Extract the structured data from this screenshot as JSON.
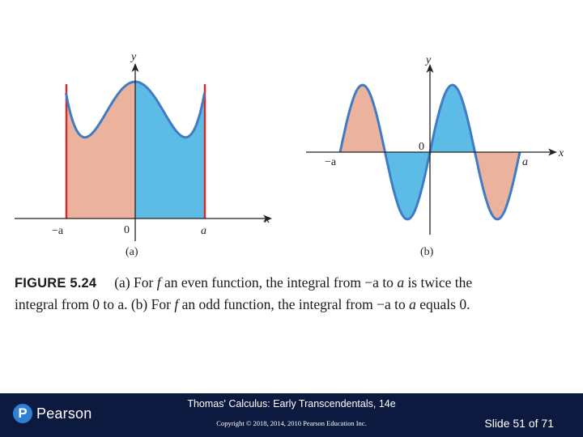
{
  "figure": {
    "panel_a": {
      "x_axis_label": "x",
      "y_axis_label": "y",
      "tick_neg": "−a",
      "tick_zero": "0",
      "tick_pos": "a",
      "panel_label": "(a)"
    },
    "panel_b": {
      "x_axis_label": "x",
      "y_axis_label": "y",
      "tick_neg": "−a",
      "tick_zero": "0",
      "tick_pos": "a",
      "panel_label": "(b)"
    },
    "colors": {
      "left_fill": "#ebb39e",
      "right_fill": "#5dbce6",
      "curve": "#3f7cc4",
      "bound_line": "#d42a2a",
      "axis": "#222222"
    }
  },
  "caption": {
    "figure_number": "FIGURE 5.24",
    "line1_part1": "(a) For ",
    "line1_f": "f",
    "line1_part2": " an even function, the integral from −a to ",
    "line1_a": "a",
    "line1_part3": " is twice the",
    "line2_part1": "integral from 0 to a. (b) For ",
    "line2_f": "f",
    "line2_part2": " an odd function, the integral from −a to ",
    "line2_a": "a",
    "line2_part3": " equals 0."
  },
  "footer": {
    "brand_letter": "P",
    "brand_name": "Pearson",
    "book_title": "Thomas' Calculus: Early Transcendentals, 14e",
    "copyright": "Copyright © 2018, 2014, 2010 Pearson Education Inc.",
    "slide_number": "Slide 51 of 71"
  }
}
